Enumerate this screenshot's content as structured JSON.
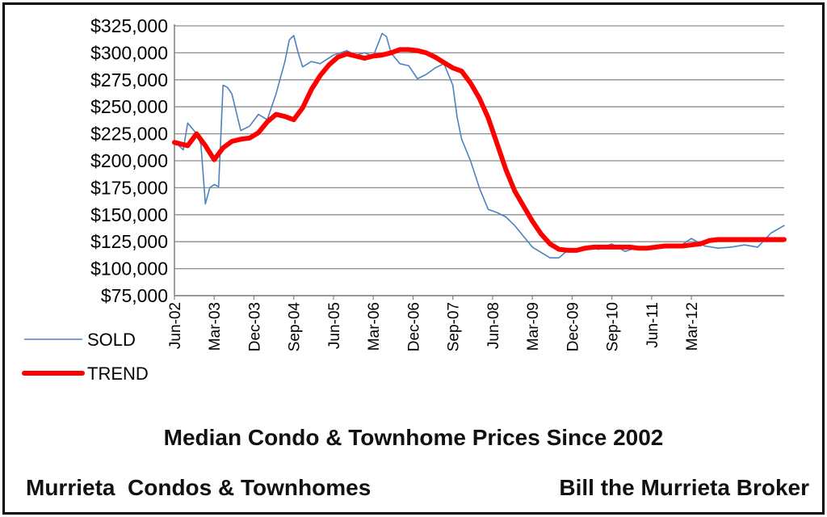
{
  "chart_data": {
    "type": "line",
    "title": "Median Condo & Townhome Prices Since 2002",
    "xlabel": "",
    "ylabel": "",
    "ylim": [
      75000,
      325000
    ],
    "yticks": [
      75000,
      100000,
      125000,
      150000,
      175000,
      200000,
      225000,
      250000,
      275000,
      300000,
      325000
    ],
    "ytick_labels": [
      "$75,000",
      "$100,000",
      "$125,000",
      "$150,000",
      "$175,000",
      "$200,000",
      "$225,000",
      "$250,000",
      "$275,000",
      "$300,000",
      "$325,000"
    ],
    "x_start": "2002-06",
    "x_end": "2013-12",
    "xtick_labels": [
      "Jun-02",
      "Mar-03",
      "Dec-03",
      "Sep-04",
      "Jun-05",
      "Mar-06",
      "Dec-06",
      "Sep-07",
      "Jun-08",
      "Mar-09",
      "Dec-09",
      "Sep-10",
      "Jun-11",
      "Mar-12"
    ],
    "grid": true,
    "legend_position": "bottom-left",
    "series": [
      {
        "name": "SOLD",
        "color": "#4f81bd",
        "x": [
          "2002-06",
          "2002-08",
          "2002-09",
          "2002-10",
          "2002-11",
          "2002-12",
          "2003-01",
          "2003-02",
          "2003-03",
          "2003-04",
          "2003-05",
          "2003-06",
          "2003-07",
          "2003-09",
          "2003-11",
          "2004-01",
          "2004-03",
          "2004-05",
          "2004-07",
          "2004-08",
          "2004-09",
          "2004-10",
          "2004-11",
          "2005-01",
          "2005-03",
          "2005-06",
          "2005-09",
          "2005-11",
          "2006-01",
          "2006-03",
          "2006-05",
          "2006-06",
          "2006-07",
          "2006-09",
          "2006-11",
          "2007-01",
          "2007-03",
          "2007-05",
          "2007-07",
          "2007-09",
          "2007-10",
          "2007-11",
          "2008-01",
          "2008-03",
          "2008-05",
          "2008-07",
          "2008-09",
          "2008-11",
          "2009-01",
          "2009-03",
          "2009-05",
          "2009-07",
          "2009-09",
          "2009-11",
          "2010-01",
          "2010-03",
          "2010-06",
          "2010-09",
          "2010-12",
          "2011-03",
          "2011-06",
          "2011-09",
          "2011-12",
          "2012-03",
          "2012-06",
          "2012-09",
          "2012-12",
          "2013-03",
          "2013-06",
          "2013-09",
          "2013-12"
        ],
        "y": [
          218000,
          210000,
          235000,
          230000,
          225000,
          215000,
          160000,
          175000,
          178000,
          176000,
          270000,
          268000,
          262000,
          228000,
          232000,
          243000,
          238000,
          262000,
          292000,
          312000,
          316000,
          300000,
          287000,
          292000,
          290000,
          298000,
          302000,
          298000,
          300000,
          297000,
          318000,
          315000,
          300000,
          290000,
          288000,
          276000,
          280000,
          286000,
          290000,
          270000,
          240000,
          220000,
          200000,
          175000,
          155000,
          152000,
          148000,
          140000,
          130000,
          120000,
          115000,
          110000,
          110000,
          117000,
          116000,
          120000,
          118000,
          123000,
          116000,
          120000,
          119000,
          121000,
          120000,
          128000,
          121000,
          119000,
          120000,
          122000,
          120000,
          133000,
          140000
        ]
      },
      {
        "name": "TREND",
        "color": "#ff0000",
        "x": [
          "2002-06",
          "2002-09",
          "2002-11",
          "2003-01",
          "2003-03",
          "2003-05",
          "2003-07",
          "2003-09",
          "2003-11",
          "2004-01",
          "2004-03",
          "2004-05",
          "2004-07",
          "2004-09",
          "2004-11",
          "2005-01",
          "2005-03",
          "2005-05",
          "2005-07",
          "2005-09",
          "2005-11",
          "2006-01",
          "2006-03",
          "2006-05",
          "2006-07",
          "2006-09",
          "2006-11",
          "2007-01",
          "2007-03",
          "2007-05",
          "2007-07",
          "2007-09",
          "2007-11",
          "2008-01",
          "2008-03",
          "2008-05",
          "2008-07",
          "2008-09",
          "2008-11",
          "2009-01",
          "2009-03",
          "2009-05",
          "2009-07",
          "2009-09",
          "2009-11",
          "2010-01",
          "2010-03",
          "2010-05",
          "2010-07",
          "2010-09",
          "2010-11",
          "2011-01",
          "2011-03",
          "2011-05",
          "2011-07",
          "2011-09",
          "2011-11",
          "2012-01",
          "2012-03",
          "2012-05",
          "2012-07",
          "2012-09",
          "2012-11",
          "2013-01",
          "2013-03",
          "2013-05",
          "2013-07",
          "2013-09",
          "2013-11",
          "2013-12"
        ],
        "y": [
          217000,
          214000,
          225000,
          214000,
          201000,
          212000,
          218000,
          220000,
          221000,
          226000,
          236000,
          243000,
          241000,
          238000,
          249000,
          266000,
          279000,
          289000,
          296000,
          299000,
          297000,
          295000,
          297000,
          298000,
          300000,
          303000,
          303000,
          302000,
          300000,
          296000,
          291000,
          286000,
          283000,
          272000,
          258000,
          240000,
          216000,
          192000,
          172000,
          158000,
          144000,
          132000,
          123000,
          118000,
          117000,
          117000,
          119000,
          120000,
          120000,
          120000,
          120000,
          120000,
          119000,
          119000,
          120000,
          121000,
          121000,
          121000,
          122000,
          123000,
          126000,
          127000,
          127000,
          127000,
          127000,
          127000,
          127000,
          127000,
          127000,
          127000
        ]
      }
    ],
    "annotations": [
      "Murrieta  Condos & Townhomes",
      "Bill the Murrieta Broker"
    ]
  }
}
